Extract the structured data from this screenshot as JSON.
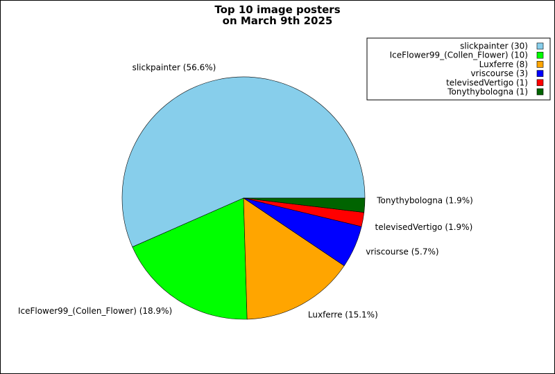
{
  "chart_data": {
    "type": "pie",
    "title_lines": [
      "Top 10 image posters",
      "on March 9th 2025"
    ],
    "slices": [
      {
        "name": "slickpainter",
        "value": 30,
        "color": "#87ceeb",
        "legend_label": "slickpainter (30)",
        "slice_label": "slickpainter (56.6%)"
      },
      {
        "name": "IceFlower99_(Collen_Flower)",
        "value": 10,
        "color": "#00ff00",
        "legend_label": "IceFlower99_(Collen_Flower) (10)",
        "slice_label": "IceFlower99_(Collen_Flower) (18.9%)"
      },
      {
        "name": "Luxferre",
        "value": 8,
        "color": "#ffa500",
        "legend_label": "Luxferre (8)",
        "slice_label": "Luxferre (15.1%)"
      },
      {
        "name": "vriscourse",
        "value": 3,
        "color": "#0000ff",
        "legend_label": "vriscourse (3)",
        "slice_label": "vriscourse (5.7%)"
      },
      {
        "name": "televisedVertigo",
        "value": 1,
        "color": "#ff0000",
        "legend_label": "televisedVertigo (1)",
        "slice_label": "televisedVertigo (1.9%)"
      },
      {
        "name": "Tonythybologna",
        "value": 1,
        "color": "#006400",
        "legend_label": "Tonythybologna (1)",
        "slice_label": "Tonythybologna (1.9%)"
      }
    ],
    "legend_position": "top-right"
  }
}
